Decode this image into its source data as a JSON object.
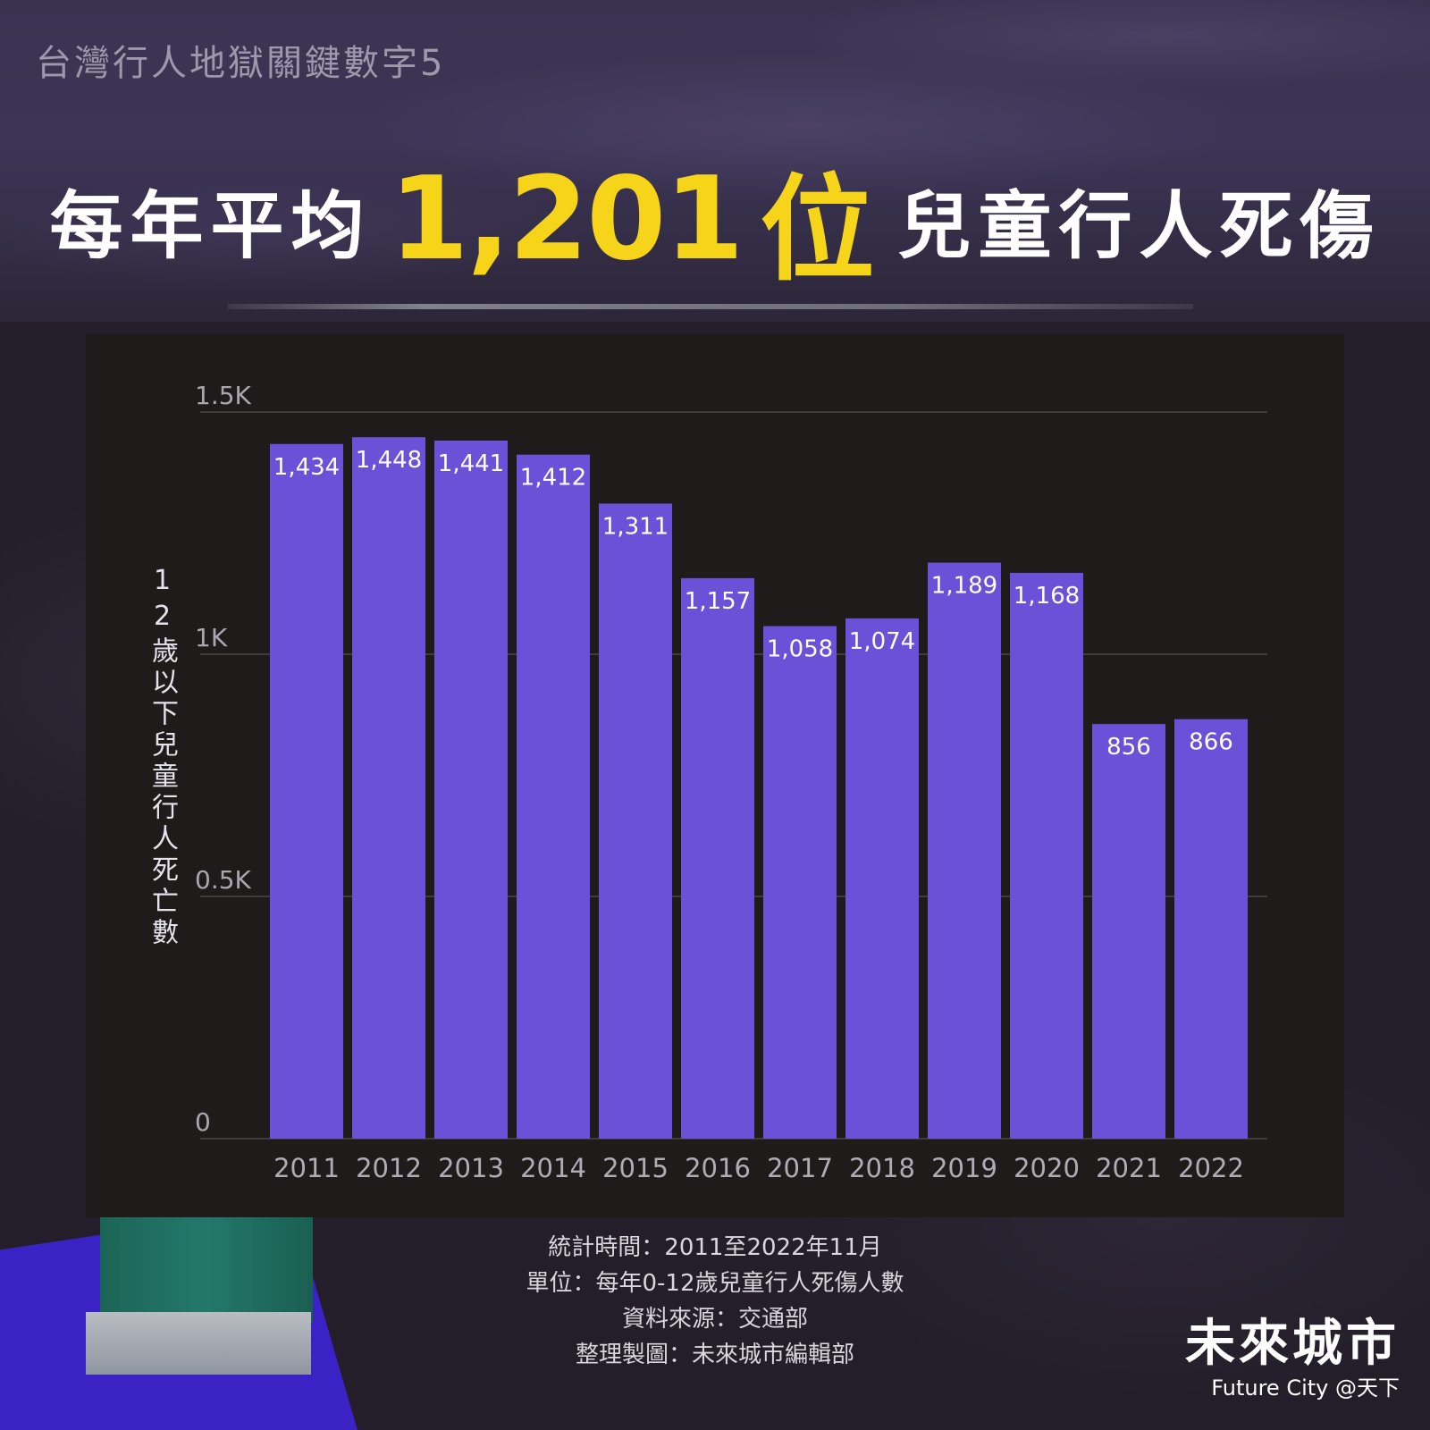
{
  "kicker": "台灣行人地獄關鍵數字5",
  "headline": {
    "prefix": "每年平均",
    "number": "1,201",
    "unit": "位",
    "suffix": "兒童行人死傷"
  },
  "colors": {
    "bar": "#6b50d8",
    "highlight": "#f5d41a",
    "panel": "#1f1b1b"
  },
  "chart_data": {
    "type": "bar",
    "categories": [
      "2011",
      "2012",
      "2013",
      "2014",
      "2015",
      "2016",
      "2017",
      "2018",
      "2019",
      "2020",
      "2021",
      "2022"
    ],
    "values": [
      1434,
      1448,
      1441,
      1412,
      1311,
      1157,
      1058,
      1074,
      1189,
      1168,
      856,
      866
    ],
    "data_labels": [
      "1,434",
      "1,448",
      "1,441",
      "1,412",
      "1,311",
      "1,157",
      "1,058",
      "1,074",
      "1,189",
      "1,168",
      "856",
      "866"
    ],
    "yticks": [
      {
        "value": 0,
        "label": "0"
      },
      {
        "value": 500,
        "label": "0.5K"
      },
      {
        "value": 1000,
        "label": "1K"
      },
      {
        "value": 1500,
        "label": "1.5K"
      }
    ],
    "ylim": [
      0,
      1500
    ],
    "ylabel": "12歲以下兒童行人死亡數",
    "title": "",
    "xlabel": "",
    "grid": true
  },
  "notes": [
    "統計時間：2011至2022年11月",
    "單位：每年0-12歲兒童行人死傷人數",
    "資料來源：交通部",
    "整理製圖：未來城市編輯部"
  ],
  "brand": {
    "name_zh": "未來城市",
    "name_en": "Future City @天下"
  }
}
